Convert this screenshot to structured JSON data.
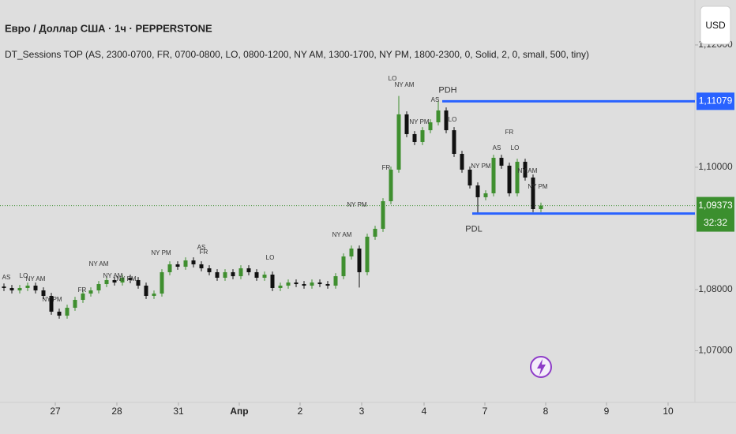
{
  "header": {
    "title": "Евро / Доллар США · 1ч · PEPPERSTONE",
    "indicator": "DT_Sessions TOP (AS, 2300-0700, FR, 0700-0800, LO, 0800-1200, NY AM, 1300-1700, NY PM, 1800-2300, 0, Solid, 2, 0, small, 500, tiny)",
    "currency_button": "USD"
  },
  "chart_data": {
    "type": "candlestick",
    "up_color": "#3f8f2f",
    "down_color": "#111111",
    "open": [
      1.0805,
      1.08026,
      1.07987,
      1.08026,
      1.08065,
      1.07987,
      1.07897,
      1.07639,
      1.07574,
      1.07703,
      1.07832,
      1.07935,
      1.07987,
      1.0809,
      1.08155,
      1.08116,
      1.08194,
      1.08155,
      1.08065,
      1.07897,
      1.07935,
      1.08284,
      1.08413,
      1.08374,
      1.08477,
      1.08413,
      1.08348,
      1.08284,
      1.08194,
      1.08284,
      1.08219,
      1.08348,
      1.08284,
      1.08194,
      1.08245,
      1.08026,
      1.08065,
      1.08116,
      1.0809,
      1.08065,
      1.08116,
      1.0809,
      1.08065,
      1.08219,
      1.08542,
      1.08671,
      1.08284,
      1.08865,
      1.08994,
      1.09445,
      1.09961,
      1.10865,
      1.10542,
      1.10413,
      1.10606,
      1.10735,
      1.10929,
      1.10606,
      1.10219,
      1.09961,
      1.09703,
      1.0951,
      1.09574,
      1.10155,
      1.10026,
      1.09574,
      1.1009,
      1.09832,
      1.09316
    ],
    "high": [
      1.081,
      1.08076,
      1.08076,
      1.08115,
      1.08115,
      1.08037,
      1.07947,
      1.07689,
      1.07753,
      1.07882,
      1.07985,
      1.08037,
      1.0814,
      1.08205,
      1.08205,
      1.08244,
      1.08244,
      1.08205,
      1.08115,
      1.07985,
      1.08334,
      1.08463,
      1.08463,
      1.08527,
      1.08527,
      1.08463,
      1.08398,
      1.08334,
      1.08334,
      1.08334,
      1.08398,
      1.08398,
      1.08334,
      1.08295,
      1.08295,
      1.08115,
      1.08166,
      1.08166,
      1.0814,
      1.08166,
      1.08166,
      1.0814,
      1.08269,
      1.08592,
      1.08721,
      1.08721,
      1.08915,
      1.09044,
      1.09495,
      1.10011,
      1.11165,
      1.10915,
      1.10592,
      1.10656,
      1.10785,
      1.11079,
      1.10979,
      1.10656,
      1.10269,
      1.10011,
      1.09753,
      1.09624,
      1.10205,
      1.10205,
      1.10076,
      1.1014,
      1.1014,
      1.09882,
      1.09423
    ],
    "low": [
      1.07976,
      1.07937,
      1.07937,
      1.07976,
      1.07937,
      1.07847,
      1.07589,
      1.07524,
      1.07524,
      1.07653,
      1.07782,
      1.07885,
      1.07937,
      1.0804,
      1.08066,
      1.08066,
      1.08105,
      1.08015,
      1.07847,
      1.07847,
      1.07885,
      1.08234,
      1.08324,
      1.08324,
      1.08363,
      1.08298,
      1.08234,
      1.08144,
      1.08144,
      1.08169,
      1.08169,
      1.08234,
      1.08144,
      1.08144,
      1.07976,
      1.07976,
      1.08015,
      1.0804,
      1.08015,
      1.08015,
      1.0804,
      1.08015,
      1.08015,
      1.08169,
      1.08492,
      1.08034,
      1.08234,
      1.08815,
      1.08944,
      1.09395,
      1.09911,
      1.10492,
      1.10363,
      1.10363,
      1.10556,
      1.10685,
      1.10556,
      1.10169,
      1.09911,
      1.09653,
      1.09243,
      1.0946,
      1.09524,
      1.09976,
      1.09524,
      1.09524,
      1.09782,
      1.09266,
      1.09266
    ],
    "close": [
      1.08026,
      1.07987,
      1.08026,
      1.08065,
      1.07987,
      1.07897,
      1.07639,
      1.07574,
      1.07703,
      1.07832,
      1.07935,
      1.07987,
      1.0809,
      1.08155,
      1.08116,
      1.08194,
      1.08155,
      1.08065,
      1.07897,
      1.07935,
      1.08284,
      1.08413,
      1.08374,
      1.08477,
      1.08413,
      1.08348,
      1.08284,
      1.08194,
      1.08284,
      1.08219,
      1.08348,
      1.08284,
      1.08194,
      1.08245,
      1.08026,
      1.08065,
      1.08116,
      1.0809,
      1.08065,
      1.08116,
      1.0809,
      1.08065,
      1.08219,
      1.08542,
      1.08671,
      1.08284,
      1.08865,
      1.08994,
      1.09445,
      1.09961,
      1.10865,
      1.10542,
      1.10413,
      1.10606,
      1.10735,
      1.10929,
      1.10606,
      1.10219,
      1.09961,
      1.09703,
      1.0951,
      1.09574,
      1.10155,
      1.10026,
      1.09574,
      1.1009,
      1.09832,
      1.09316,
      1.09373
    ],
    "xlim": [
      -0.5,
      87.5
    ],
    "xticks": [
      {
        "value": 6.5,
        "label": "27"
      },
      {
        "value": 14.3,
        "label": "28"
      },
      {
        "value": 22.1,
        "label": "31"
      },
      {
        "value": 29.8,
        "label": "Апр"
      },
      {
        "value": 37.5,
        "label": "2"
      },
      {
        "value": 45.3,
        "label": "3"
      },
      {
        "value": 53.2,
        "label": "4"
      },
      {
        "value": 60.9,
        "label": "7"
      },
      {
        "value": 68.6,
        "label": "8"
      },
      {
        "value": 76.3,
        "label": "9"
      },
      {
        "value": 84.1,
        "label": "10"
      }
    ],
    "ylim": [
      1.06155,
      1.12735
    ],
    "yticks": [
      {
        "value": 1.12,
        "label": "1,12000"
      },
      {
        "value": 1.1,
        "label": "1,10000"
      },
      {
        "value": 1.08,
        "label": "1,08000"
      },
      {
        "value": 1.07,
        "label": "1,07000"
      }
    ],
    "levels": [
      {
        "name": "PDH",
        "value": 1.11079,
        "label": "1,11079",
        "color": "#2962ff"
      },
      {
        "name": "PDL",
        "value": 1.09243,
        "label": "1,09243",
        "color": "#2962ff"
      }
    ],
    "last": {
      "value": 1.09373,
      "label": "1,09373",
      "countdown": "32:32",
      "color": "#3b8f2e"
    },
    "session_labels": [
      "AS",
      "LO",
      "NY AM",
      "NY PM",
      "NY AM",
      "NY PM",
      "FR",
      "NY AM",
      "NY PM",
      "AS",
      "FR",
      "LO",
      "NY AM",
      "NY PM",
      "LO",
      "NY AM",
      "NY PM",
      "AS",
      "FR",
      "LO",
      "NY PM",
      "AS",
      "FR",
      "LO",
      "NY AM",
      "NY PM"
    ]
  }
}
